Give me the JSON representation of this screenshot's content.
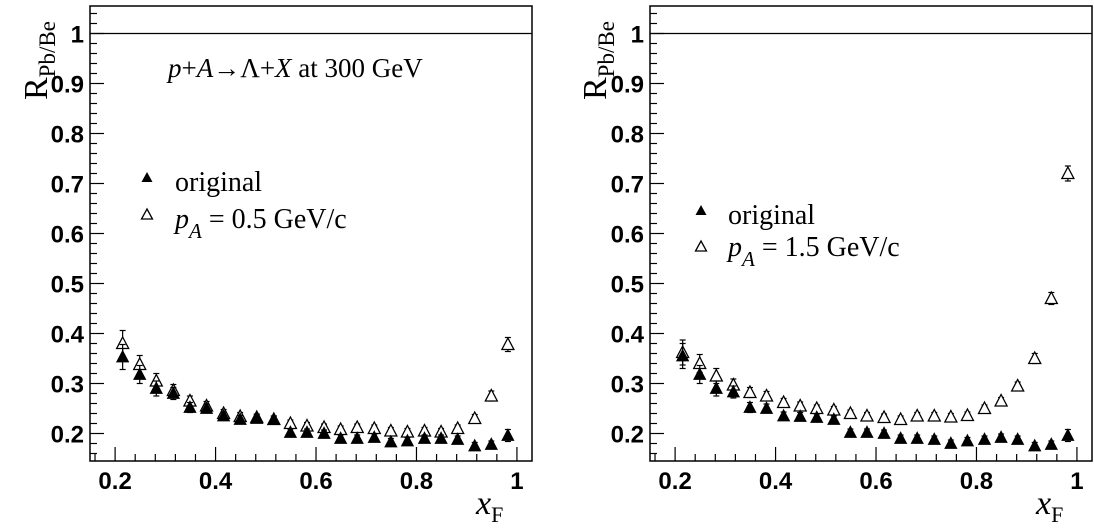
{
  "chart_data": [
    {
      "type": "scatter",
      "ylabel": "R",
      "ylabel_sub": "Pb/Be",
      "xlabel": "x",
      "xlabel_sub": "F",
      "xlim": [
        0.15,
        1.03
      ],
      "ylim": [
        0.145,
        1.055
      ],
      "xticks": [
        "0.2",
        "0.4",
        "0.6",
        "0.8",
        "1"
      ],
      "yticks": [
        "0.2",
        "0.3",
        "0.4",
        "0.5",
        "0.6",
        "0.7",
        "0.8",
        "0.9",
        "1"
      ],
      "reference_line": 1,
      "annotation": {
        "p": "p",
        "plus1": "+",
        "A": "A",
        "arrow": "→",
        "Lambda": "Λ",
        "plus2": "+",
        "X": "X",
        "rest": " at 300 GeV"
      },
      "legend": [
        {
          "marker": "filled-triangle",
          "label": "original"
        },
        {
          "marker": "open-triangle",
          "label_pre": "p",
          "label_sub": "A",
          "label_post": " = 0.5 GeV/c"
        }
      ],
      "series": [
        {
          "marker": "filled-triangle",
          "x": [
            0.215,
            0.249,
            0.282,
            0.316,
            0.349,
            0.382,
            0.416,
            0.449,
            0.482,
            0.516,
            0.549,
            0.582,
            0.616,
            0.649,
            0.682,
            0.716,
            0.749,
            0.782,
            0.816,
            0.849,
            0.882,
            0.916,
            0.949,
            0.982
          ],
          "y": [
            0.353,
            0.318,
            0.29,
            0.28,
            0.252,
            0.25,
            0.235,
            0.228,
            0.23,
            0.228,
            0.202,
            0.202,
            0.2,
            0.19,
            0.19,
            0.192,
            0.183,
            0.185,
            0.19,
            0.19,
            0.188,
            0.175,
            0.178,
            0.196
          ],
          "err": [
            0.025,
            0.018,
            0.015,
            0.012,
            0.01,
            0.009,
            0.008,
            0.008,
            0.007,
            0.007,
            0.007,
            0.007,
            0.007,
            0.007,
            0.007,
            0.007,
            0.007,
            0.007,
            0.007,
            0.007,
            0.007,
            0.007,
            0.007,
            0.012
          ]
        },
        {
          "marker": "open-triangle",
          "x": [
            0.215,
            0.249,
            0.282,
            0.316,
            0.349,
            0.382,
            0.416,
            0.449,
            0.482,
            0.516,
            0.549,
            0.582,
            0.616,
            0.649,
            0.682,
            0.716,
            0.749,
            0.782,
            0.816,
            0.849,
            0.882,
            0.916,
            0.949,
            0.982
          ],
          "y": [
            0.38,
            0.338,
            0.305,
            0.286,
            0.265,
            0.255,
            0.24,
            0.234,
            0.232,
            0.228,
            0.22,
            0.215,
            0.212,
            0.208,
            0.212,
            0.21,
            0.205,
            0.203,
            0.205,
            0.203,
            0.21,
            0.23,
            0.275,
            0.378
          ],
          "err": [
            0.026,
            0.018,
            0.015,
            0.012,
            0.01,
            0.009,
            0.008,
            0.008,
            0.007,
            0.007,
            0.007,
            0.007,
            0.007,
            0.007,
            0.007,
            0.007,
            0.007,
            0.007,
            0.007,
            0.007,
            0.007,
            0.008,
            0.01,
            0.014
          ]
        }
      ]
    },
    {
      "type": "scatter",
      "ylabel": "R",
      "ylabel_sub": "Pb/Be",
      "xlabel": "x",
      "xlabel_sub": "F",
      "xlim": [
        0.15,
        1.03
      ],
      "ylim": [
        0.145,
        1.055
      ],
      "xticks": [
        "0.2",
        "0.4",
        "0.6",
        "0.8",
        "1"
      ],
      "yticks": [
        "0.2",
        "0.3",
        "0.4",
        "0.5",
        "0.6",
        "0.7",
        "0.8",
        "0.9",
        "1"
      ],
      "reference_line": 1,
      "legend": [
        {
          "marker": "filled-triangle",
          "label": "original"
        },
        {
          "marker": "open-triangle",
          "label_pre": "p",
          "label_sub": "A",
          "label_post": " = 1.5 GeV/c"
        }
      ],
      "series": [
        {
          "marker": "filled-triangle",
          "x": [
            0.215,
            0.249,
            0.282,
            0.316,
            0.349,
            0.382,
            0.416,
            0.449,
            0.482,
            0.516,
            0.549,
            0.582,
            0.616,
            0.649,
            0.682,
            0.716,
            0.749,
            0.782,
            0.816,
            0.849,
            0.882,
            0.916,
            0.949,
            0.982
          ],
          "y": [
            0.355,
            0.318,
            0.29,
            0.283,
            0.252,
            0.25,
            0.235,
            0.234,
            0.232,
            0.228,
            0.202,
            0.202,
            0.2,
            0.19,
            0.19,
            0.188,
            0.18,
            0.185,
            0.188,
            0.192,
            0.188,
            0.175,
            0.178,
            0.196
          ],
          "err": [
            0.025,
            0.018,
            0.015,
            0.012,
            0.01,
            0.009,
            0.008,
            0.008,
            0.007,
            0.007,
            0.007,
            0.007,
            0.007,
            0.007,
            0.007,
            0.007,
            0.007,
            0.007,
            0.007,
            0.007,
            0.007,
            0.007,
            0.007,
            0.012
          ]
        },
        {
          "marker": "open-triangle",
          "x": [
            0.215,
            0.249,
            0.282,
            0.316,
            0.349,
            0.382,
            0.416,
            0.449,
            0.482,
            0.516,
            0.549,
            0.582,
            0.616,
            0.649,
            0.682,
            0.716,
            0.749,
            0.782,
            0.816,
            0.849,
            0.882,
            0.916,
            0.949,
            0.982
          ],
          "y": [
            0.362,
            0.34,
            0.315,
            0.297,
            0.282,
            0.275,
            0.262,
            0.255,
            0.25,
            0.247,
            0.24,
            0.235,
            0.232,
            0.228,
            0.235,
            0.235,
            0.233,
            0.236,
            0.25,
            0.265,
            0.295,
            0.35,
            0.47,
            0.72
          ],
          "err": [
            0.025,
            0.018,
            0.015,
            0.012,
            0.01,
            0.009,
            0.008,
            0.008,
            0.007,
            0.007,
            0.007,
            0.007,
            0.007,
            0.007,
            0.007,
            0.007,
            0.007,
            0.007,
            0.007,
            0.007,
            0.008,
            0.01,
            0.012,
            0.015
          ]
        }
      ]
    }
  ]
}
